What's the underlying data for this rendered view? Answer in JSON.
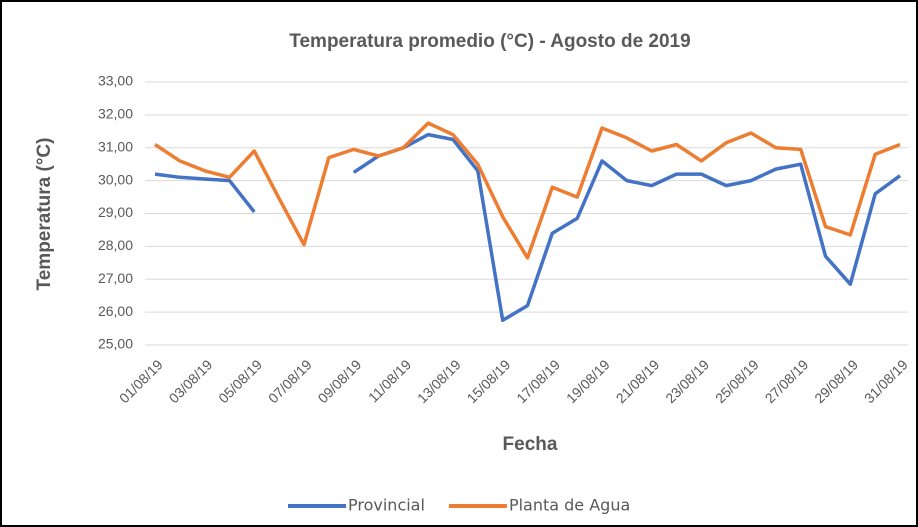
{
  "chart_data": {
    "type": "line",
    "title": "Temperatura promedio (°C) - Agosto de 2019",
    "x_label": "Fecha",
    "y_label": "Temperatura (°C)",
    "categories": [
      "01/08/19",
      null,
      "03/08/19",
      null,
      "05/08/19",
      null,
      "07/08/19",
      null,
      "09/08/19",
      null,
      "11/08/19",
      null,
      "13/08/19",
      null,
      "15/08/19",
      null,
      "17/08/19",
      null,
      "19/08/19",
      null,
      "21/08/19",
      null,
      "23/08/19",
      null,
      "25/08/19",
      null,
      "27/08/19",
      null,
      "29/08/19",
      null,
      "31/08/19"
    ],
    "series": [
      {
        "name": "Provincial",
        "color": "#4472c4",
        "values": [
          30.2,
          30.1,
          30.05,
          30.0,
          29.05,
          null,
          null,
          null,
          30.25,
          30.75,
          31.0,
          31.4,
          31.25,
          30.3,
          25.75,
          26.2,
          28.4,
          28.85,
          30.6,
          30.0,
          29.85,
          30.2,
          30.2,
          29.85,
          30.0,
          30.35,
          30.5,
          27.7,
          26.85,
          29.6,
          30.15
        ]
      },
      {
        "name": "Planta de Agua",
        "color": "#ed7d31",
        "values": [
          31.1,
          30.6,
          30.3,
          30.1,
          30.9,
          29.45,
          28.05,
          30.7,
          30.95,
          30.75,
          31.0,
          31.75,
          31.4,
          30.5,
          28.9,
          27.65,
          29.8,
          29.5,
          31.6,
          31.3,
          30.9,
          31.1,
          30.6,
          31.15,
          31.45,
          31.0,
          30.95,
          28.6,
          28.35,
          30.8,
          31.1
        ]
      }
    ],
    "ylim": [
      25,
      33
    ],
    "yticks": [
      {
        "value": 25,
        "label": "25,00"
      },
      {
        "value": 26,
        "label": "26,00"
      },
      {
        "value": 27,
        "label": "27,00"
      },
      {
        "value": 28,
        "label": "28,00"
      },
      {
        "value": 29,
        "label": "29,00"
      },
      {
        "value": 30,
        "label": "30,00"
      },
      {
        "value": 31,
        "label": "31,00"
      },
      {
        "value": 32,
        "label": "32,00"
      },
      {
        "value": 33,
        "label": "33,00"
      }
    ],
    "grid": true,
    "legend": "bottom"
  }
}
